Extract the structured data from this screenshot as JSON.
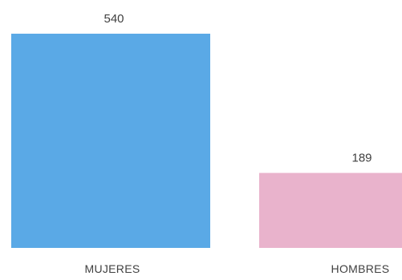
{
  "chart_data": {
    "type": "bar",
    "title": "",
    "xlabel": "",
    "ylabel": "",
    "categories": [
      "MUJERES",
      "HOMBRES"
    ],
    "values": [
      540,
      189
    ],
    "colors": [
      "#5aa9e6",
      "#e9b3cc"
    ],
    "ylim": [
      0,
      540
    ],
    "grid": false,
    "data_labels": true,
    "axes_visible": false
  }
}
